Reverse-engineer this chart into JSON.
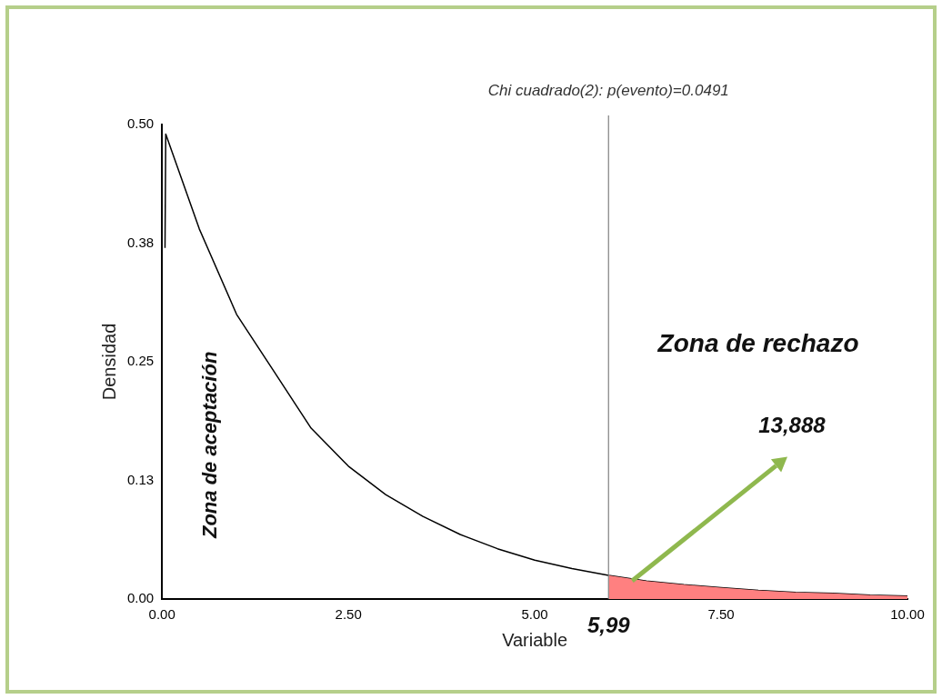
{
  "chart_data": {
    "type": "line",
    "title": "Chi cuadrado(2): p(evento)=0.0491",
    "xlabel": "Variable",
    "ylabel": "Densidad",
    "xlim": [
      0,
      10
    ],
    "ylim": [
      0,
      0.5
    ],
    "xticks": [
      {
        "value": 0,
        "label": "0.00"
      },
      {
        "value": 2.5,
        "label": "2.50"
      },
      {
        "value": 5,
        "label": "5.00"
      },
      {
        "value": 7.5,
        "label": "7.50"
      },
      {
        "value": 10,
        "label": "10.00"
      }
    ],
    "yticks": [
      {
        "value": 0,
        "label": "0.00"
      },
      {
        "value": 0.125,
        "label": "0.13"
      },
      {
        "value": 0.25,
        "label": "0.25"
      },
      {
        "value": 0.375,
        "label": "0.38"
      },
      {
        "value": 0.5,
        "label": "0.50"
      }
    ],
    "series": [
      {
        "type": "area",
        "color": "#ff8080",
        "x": [
          5.99,
          6.5,
          7,
          7.5,
          8,
          8.5,
          9,
          9.5,
          10
        ],
        "values": [
          0.025,
          0.019,
          0.015,
          0.012,
          0.009,
          0.007,
          0.006,
          0.004,
          0.003
        ]
      },
      {
        "color": "#000000",
        "x": [
          0.04,
          0.05,
          0.5,
          1,
          1.5,
          2,
          2.5,
          3,
          3.5,
          4,
          4.5,
          5,
          5.5,
          5.99,
          6.5,
          7,
          7.5,
          8,
          8.5,
          9,
          9.5,
          10
        ],
        "values": [
          0.37,
          0.49,
          0.39,
          0.3,
          0.24,
          0.18,
          0.14,
          0.11,
          0.087,
          0.068,
          0.053,
          0.041,
          0.032,
          0.025,
          0.019,
          0.015,
          0.012,
          0.009,
          0.007,
          0.006,
          0.004,
          0.003
        ]
      }
    ],
    "ref_lines": [
      {
        "axis": "x",
        "value": 5.99,
        "label": "5,99",
        "color": "#808080"
      }
    ],
    "annotations": [
      "Zona de aceptación",
      "Zona de rechazo",
      "13,888"
    ],
    "grid": false,
    "legend": false,
    "marker": "none",
    "line_style": "solid"
  }
}
